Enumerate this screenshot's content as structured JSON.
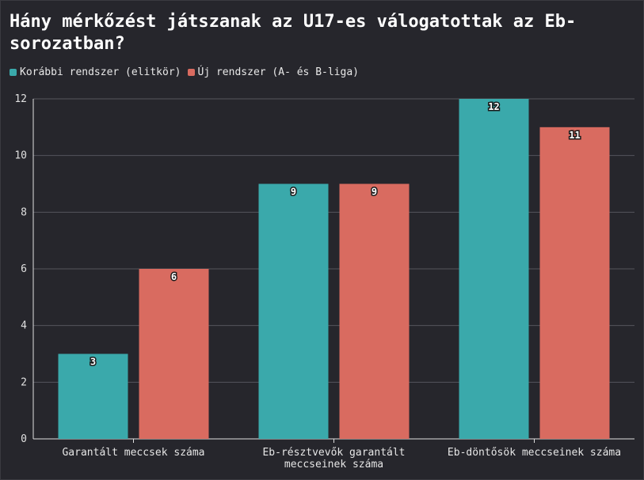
{
  "title": "Hány mérkőzést játszanak az U17-es válogatottak az Eb-sorozatban?",
  "legend": [
    {
      "label": "Korábbi rendszer (elitkör)",
      "color": "#3aa9ab"
    },
    {
      "label": "Új rendszer (A- és B-liga)",
      "color": "#d96b60"
    }
  ],
  "chart_data": {
    "type": "bar",
    "title": "Hány mérkőzést játszanak az U17-es válogatottak az Eb-sorozatban?",
    "categories": [
      [
        "Garantált meccsek száma"
      ],
      [
        "Eb-résztvevők garantált",
        "meccseinek száma"
      ],
      [
        "Eb-döntősök meccseinek száma"
      ]
    ],
    "series": [
      {
        "name": "Korábbi rendszer (elitkör)",
        "values": [
          3,
          9,
          12
        ],
        "color": "#3aa9ab"
      },
      {
        "name": "Új rendszer (A- és B-liga)",
        "values": [
          6,
          9,
          11
        ],
        "color": "#d96b60"
      }
    ],
    "yticks": [
      0,
      2,
      4,
      6,
      8,
      10,
      12
    ],
    "ylim": [
      0,
      12
    ],
    "xlabel": "",
    "ylabel": "",
    "grid": true
  }
}
